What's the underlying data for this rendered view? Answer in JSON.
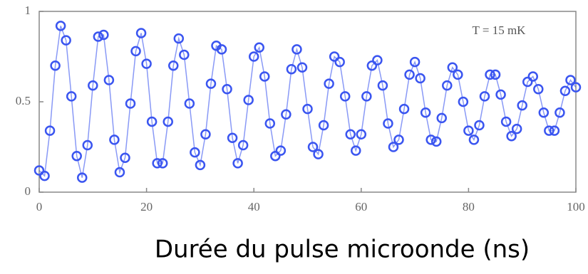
{
  "chart_data": {
    "type": "scatter",
    "annotation": "T = 15 mK",
    "xlabel": "Durée du pulse microonde (ns)",
    "x": [
      0,
      1,
      2,
      3,
      4,
      5,
      6,
      7,
      8,
      9,
      10,
      11,
      12,
      13,
      14,
      15,
      16,
      17,
      18,
      19,
      20,
      21,
      22,
      23,
      24,
      25,
      26,
      27,
      28,
      29,
      30,
      31,
      32,
      33,
      34,
      35,
      36,
      37,
      38,
      39,
      40,
      41,
      42,
      43,
      44,
      45,
      46,
      47,
      48,
      49,
      50,
      51,
      52,
      53,
      54,
      55,
      56,
      57,
      58,
      59,
      60,
      61,
      62,
      63,
      64,
      65,
      66,
      67,
      68,
      69,
      70,
      71,
      72,
      73,
      74,
      75,
      76,
      77,
      78,
      79,
      80,
      81,
      82,
      83,
      84,
      85,
      86,
      87,
      88,
      89,
      90,
      91,
      92,
      93,
      94,
      95,
      96,
      97,
      98,
      99,
      100
    ],
    "values": [
      0.12,
      0.09,
      0.34,
      0.7,
      0.92,
      0.84,
      0.53,
      0.2,
      0.08,
      0.26,
      0.59,
      0.86,
      0.87,
      0.62,
      0.29,
      0.11,
      0.19,
      0.49,
      0.78,
      0.88,
      0.71,
      0.39,
      0.16,
      0.16,
      0.39,
      0.7,
      0.85,
      0.76,
      0.49,
      0.22,
      0.15,
      0.32,
      0.6,
      0.81,
      0.79,
      0.57,
      0.3,
      0.16,
      0.26,
      0.51,
      0.75,
      0.8,
      0.64,
      0.38,
      0.2,
      0.23,
      0.43,
      0.68,
      0.79,
      0.69,
      0.46,
      0.25,
      0.21,
      0.37,
      0.6,
      0.75,
      0.72,
      0.53,
      0.32,
      0.23,
      0.32,
      0.53,
      0.7,
      0.73,
      0.59,
      0.38,
      0.25,
      0.29,
      0.46,
      0.65,
      0.72,
      0.63,
      0.44,
      0.29,
      0.28,
      0.41,
      0.59,
      0.69,
      0.65,
      0.5,
      0.34,
      0.29,
      0.37,
      0.53,
      0.65,
      0.65,
      0.54,
      0.39,
      0.31,
      0.35,
      0.48,
      0.61,
      0.64,
      0.57,
      0.44,
      0.34,
      0.34,
      0.44,
      0.56,
      0.62,
      0.58
    ],
    "color": "#3a55f0",
    "xlim": [
      0,
      100
    ],
    "ylim": [
      0,
      1
    ],
    "xticks": [
      0,
      20,
      40,
      60,
      80,
      100
    ],
    "yticks": [
      0,
      0.5,
      1
    ]
  }
}
